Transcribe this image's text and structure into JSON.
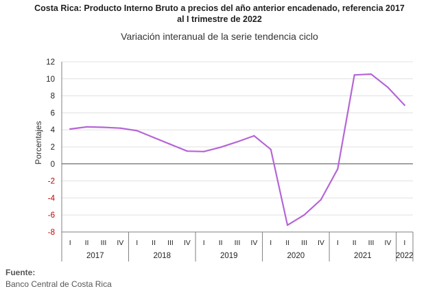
{
  "title_line1": "Costa Rica: Producto Interno Bruto a precios del año anterior encadenado, referencia 2017",
  "title_line2": "al I trimestre de 2022",
  "source": {
    "label": "Fuente:",
    "value": "Banco Central de Costa Rica"
  },
  "colors": {
    "line": "#b565d6",
    "axis": "#7f7f7f",
    "grid": "#e0e0e0",
    "negative_tick": "#c00000"
  },
  "chart_data": {
    "type": "line",
    "title": "Variación interanual de la serie tendencia ciclo",
    "ylabel": "Porcentajes",
    "xlabel": "",
    "ylim": [
      -8,
      12
    ],
    "yticks": [
      12,
      10,
      8,
      6,
      4,
      2,
      0,
      -2,
      -4,
      -6,
      -8
    ],
    "grid": true,
    "quarters": [
      "I",
      "II",
      "III",
      "IV",
      "I",
      "II",
      "III",
      "IV",
      "I",
      "II",
      "III",
      "IV",
      "I",
      "II",
      "III",
      "IV",
      "I",
      "II",
      "III",
      "IV",
      "I"
    ],
    "years": [
      {
        "label": "2017",
        "quarters": 4
      },
      {
        "label": "2018",
        "quarters": 4
      },
      {
        "label": "2019",
        "quarters": 4
      },
      {
        "label": "2020",
        "quarters": 4
      },
      {
        "label": "2021",
        "quarters": 4
      },
      {
        "label": "2022",
        "quarters": 1
      }
    ],
    "series": [
      {
        "values": [
          4.1,
          4.35,
          4.3,
          4.2,
          3.9,
          3.1,
          2.3,
          1.5,
          1.45,
          1.95,
          2.6,
          3.3,
          1.7,
          -7.2,
          -6.0,
          -4.2,
          -0.6,
          10.45,
          10.55,
          9.0,
          6.9
        ]
      }
    ]
  }
}
